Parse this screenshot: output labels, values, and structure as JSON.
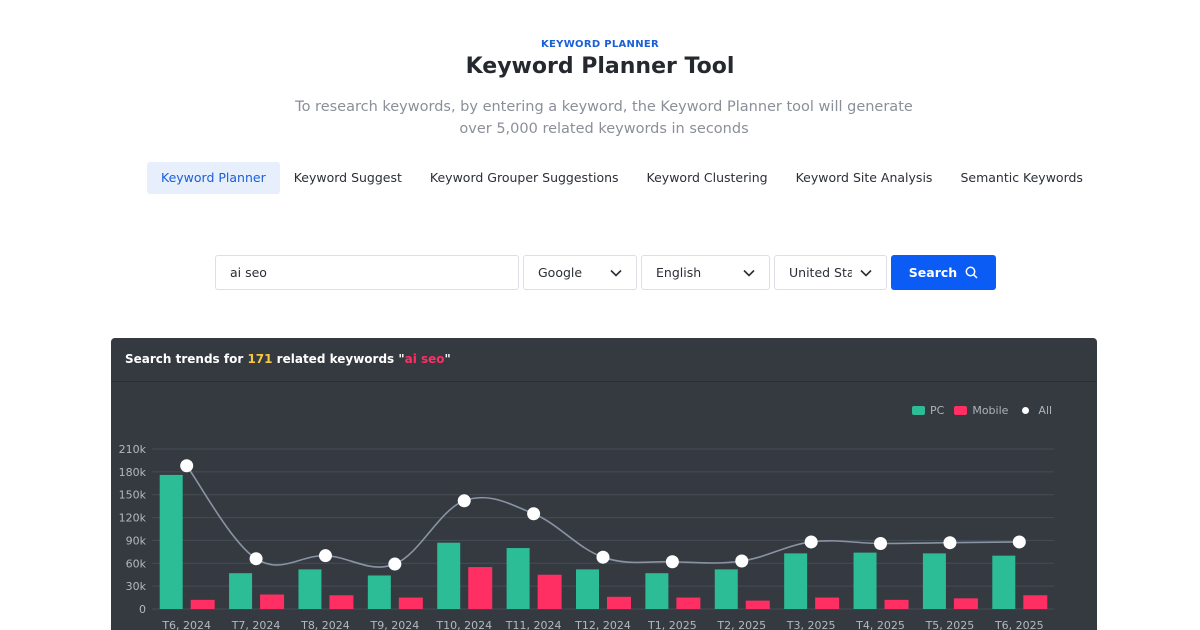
{
  "header": {
    "eyebrow": "KEYWORD PLANNER",
    "title": "Keyword Planner Tool",
    "subtitle": "To research keywords, by entering a keyword, the Keyword Planner tool will generate over 5,000 related keywords in seconds"
  },
  "tabs": [
    {
      "label": "Keyword Planner",
      "active": true
    },
    {
      "label": "Keyword Suggest",
      "active": false
    },
    {
      "label": "Keyword Grouper Suggestions",
      "active": false
    },
    {
      "label": "Keyword Clustering",
      "active": false
    },
    {
      "label": "Keyword Site Analysis",
      "active": false
    },
    {
      "label": "Semantic Keywords",
      "active": false
    }
  ],
  "search": {
    "keyword_value": "ai seo",
    "engine": "Google",
    "language": "English",
    "country": "United Sta",
    "button_label": "Search"
  },
  "panel": {
    "title_prefix": "Search trends for ",
    "count": "171",
    "title_mid": " related keywords \"",
    "keyword": "ai seo",
    "title_suffix": "\""
  },
  "colors": {
    "accent": "#0b5cf5",
    "pc": "#2dbd96",
    "mobile": "#ff2f64",
    "all": "#ffffff",
    "panel_bg": "#343a40"
  },
  "chart_data": {
    "type": "bar",
    "categories": [
      "T6, 2024",
      "T7, 2024",
      "T8, 2024",
      "T9, 2024",
      "T10, 2024",
      "T11, 2024",
      "T12, 2024",
      "T1, 2025",
      "T2, 2025",
      "T3, 2025",
      "T4, 2025",
      "T5, 2025",
      "T6, 2025"
    ],
    "series": [
      {
        "name": "PC",
        "type": "bar",
        "values": [
          176000,
          47000,
          52000,
          44000,
          87000,
          80000,
          52000,
          47000,
          52000,
          73000,
          74000,
          73000,
          70000
        ]
      },
      {
        "name": "Mobile",
        "type": "bar",
        "values": [
          12000,
          19000,
          18000,
          15000,
          55000,
          45000,
          16000,
          15000,
          11000,
          15000,
          12000,
          14000,
          18000
        ]
      },
      {
        "name": "All",
        "type": "line",
        "values": [
          188000,
          66000,
          70000,
          59000,
          142000,
          125000,
          68000,
          62000,
          63000,
          88000,
          86000,
          87000,
          88000
        ]
      }
    ],
    "y_ticks": [
      "0",
      "30k",
      "60k",
      "90k",
      "120k",
      "150k",
      "180k",
      "210k"
    ],
    "ylim": [
      0,
      210000
    ],
    "legend_position": "top-right",
    "grid": true
  }
}
